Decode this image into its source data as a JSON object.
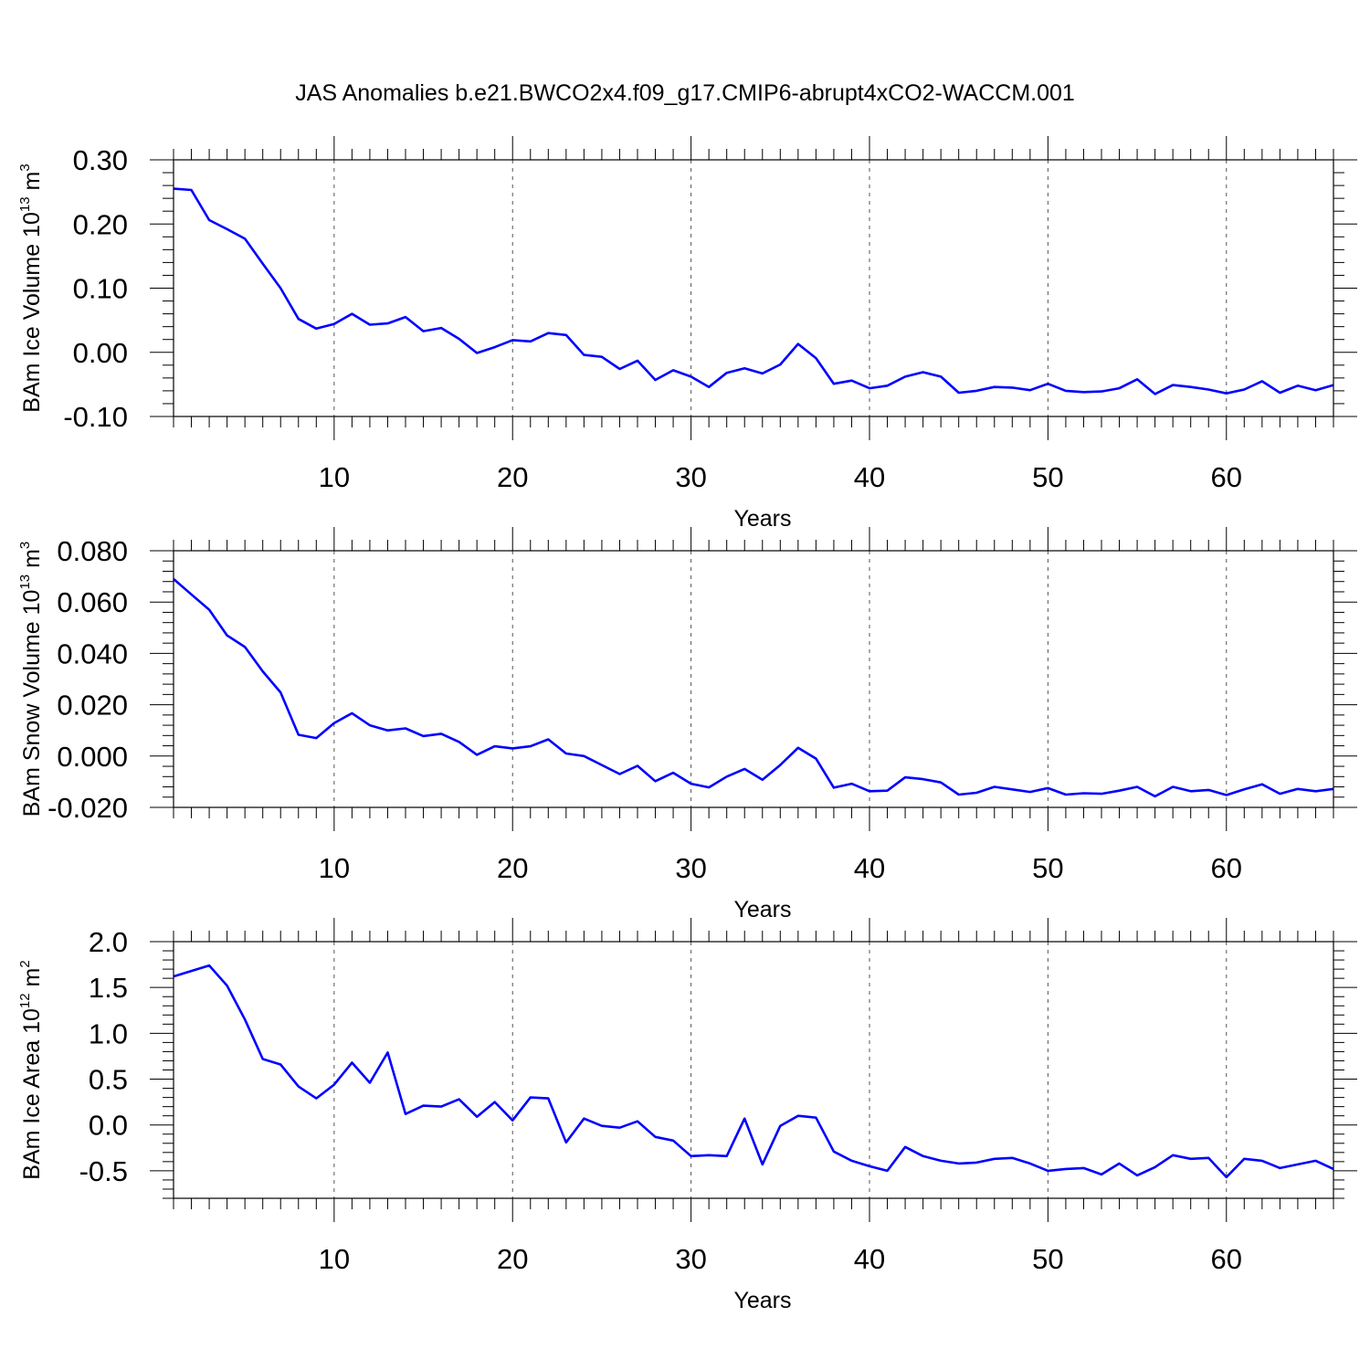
{
  "title": "JAS Anomalies b.e21.BWCO2x4.f09_g17.CMIP6-abrupt4xCO2-WACCM.001",
  "colors": {
    "line": "#0000ff",
    "axis": "#000000",
    "grid": "#555555"
  },
  "chart_data": [
    {
      "type": "line",
      "ylabel": {
        "main": "BAm Ice Volume 10",
        "exp": "13",
        "unit": " m",
        "unit_exp": "3"
      },
      "xlabel": "Years",
      "xlim": [
        1,
        66
      ],
      "ylim": [
        -0.1,
        0.3
      ],
      "yticks": [
        "0.30",
        "0.20",
        "0.10",
        "0.00",
        "-0.10"
      ],
      "ytick_values": [
        0.3,
        0.2,
        0.1,
        0.0,
        -0.1
      ],
      "xticks": [
        "10",
        "20",
        "30",
        "40",
        "50",
        "60"
      ],
      "xtick_values": [
        10,
        20,
        30,
        40,
        50,
        60
      ],
      "grid": "vertical dashed at major x ticks",
      "x": [
        1,
        2,
        3,
        4,
        5,
        6,
        7,
        8,
        9,
        10,
        11,
        12,
        13,
        14,
        15,
        16,
        17,
        18,
        19,
        20,
        21,
        22,
        23,
        24,
        25,
        26,
        27,
        28,
        29,
        30,
        31,
        32,
        33,
        34,
        35,
        36,
        37,
        38,
        39,
        40,
        41,
        42,
        43,
        44,
        45,
        46,
        47,
        48,
        49,
        50,
        51,
        52,
        53,
        54,
        55,
        56,
        57,
        58,
        59,
        60,
        61,
        62,
        63,
        64,
        65,
        66
      ],
      "values": [
        0.255,
        0.253,
        0.206,
        0.192,
        0.177,
        0.138,
        0.1,
        0.052,
        0.037,
        0.044,
        0.06,
        0.043,
        0.045,
        0.055,
        0.033,
        0.038,
        0.021,
        -0.001,
        0.008,
        0.019,
        0.017,
        0.03,
        0.027,
        -0.004,
        -0.007,
        -0.026,
        -0.013,
        -0.043,
        -0.028,
        -0.038,
        -0.054,
        -0.032,
        -0.025,
        -0.033,
        -0.019,
        0.013,
        -0.009,
        -0.049,
        -0.044,
        -0.056,
        -0.052,
        -0.038,
        -0.031,
        -0.038,
        -0.063,
        -0.06,
        -0.054,
        -0.055,
        -0.059,
        -0.049,
        -0.06,
        -0.062,
        -0.061,
        -0.056,
        -0.042,
        -0.065,
        -0.051,
        -0.054,
        -0.058,
        -0.064,
        -0.058,
        -0.045,
        -0.063,
        -0.052,
        -0.059,
        -0.051
      ]
    },
    {
      "type": "line",
      "ylabel": {
        "main": "BAm Snow Volume 10",
        "exp": "13",
        "unit": " m",
        "unit_exp": "3"
      },
      "xlabel": "Years",
      "xlim": [
        1,
        66
      ],
      "ylim": [
        -0.02,
        0.08
      ],
      "yticks": [
        "0.080",
        "0.060",
        "0.040",
        "0.020",
        "0.000",
        "-0.020"
      ],
      "ytick_values": [
        0.08,
        0.06,
        0.04,
        0.02,
        0.0,
        -0.02
      ],
      "xticks": [
        "10",
        "20",
        "30",
        "40",
        "50",
        "60"
      ],
      "xtick_values": [
        10,
        20,
        30,
        40,
        50,
        60
      ],
      "grid": "vertical dashed at major x ticks",
      "x": [
        1,
        2,
        3,
        4,
        5,
        6,
        7,
        8,
        9,
        10,
        11,
        12,
        13,
        14,
        15,
        16,
        17,
        18,
        19,
        20,
        21,
        22,
        23,
        24,
        25,
        26,
        27,
        28,
        29,
        30,
        31,
        32,
        33,
        34,
        35,
        36,
        37,
        38,
        39,
        40,
        41,
        42,
        43,
        44,
        45,
        46,
        47,
        48,
        49,
        50,
        51,
        52,
        53,
        54,
        55,
        56,
        57,
        58,
        59,
        60,
        61,
        62,
        63,
        64,
        65,
        66
      ],
      "values": [
        0.069,
        0.063,
        0.057,
        0.047,
        0.0425,
        0.033,
        0.0248,
        0.0083,
        0.007,
        0.0128,
        0.0167,
        0.012,
        0.01,
        0.0108,
        0.0078,
        0.0087,
        0.0055,
        0.0005,
        0.0038,
        0.003,
        0.0038,
        0.0065,
        0.001,
        0.0,
        -0.0035,
        -0.007,
        -0.0038,
        -0.0098,
        -0.0065,
        -0.0108,
        -0.0122,
        -0.008,
        -0.005,
        -0.0092,
        -0.0035,
        0.0032,
        -0.001,
        -0.0123,
        -0.0108,
        -0.0137,
        -0.0135,
        -0.0083,
        -0.009,
        -0.0103,
        -0.015,
        -0.0143,
        -0.012,
        -0.013,
        -0.014,
        -0.0125,
        -0.015,
        -0.0145,
        -0.0147,
        -0.0135,
        -0.012,
        -0.0157,
        -0.012,
        -0.0137,
        -0.0132,
        -0.0152,
        -0.013,
        -0.011,
        -0.0147,
        -0.0128,
        -0.0137,
        -0.0128
      ]
    },
    {
      "type": "line",
      "ylabel": {
        "main": "BAm Ice Area 10",
        "exp": "12",
        "unit": " m",
        "unit_exp": "2"
      },
      "xlabel": "Years",
      "xlim": [
        1,
        66
      ],
      "ylim": [
        -0.8,
        2.0
      ],
      "yticks": [
        "2.0",
        "1.5",
        "1.0",
        "0.5",
        "0.0",
        "-0.5"
      ],
      "ytick_values": [
        2.0,
        1.5,
        1.0,
        0.5,
        0.0,
        -0.5
      ],
      "xticks": [
        "10",
        "20",
        "30",
        "40",
        "50",
        "60"
      ],
      "xtick_values": [
        10,
        20,
        30,
        40,
        50,
        60
      ],
      "grid": "vertical dashed at major x ticks",
      "x": [
        1,
        2,
        3,
        4,
        5,
        6,
        7,
        8,
        9,
        10,
        11,
        12,
        13,
        14,
        15,
        16,
        17,
        18,
        19,
        20,
        21,
        22,
        23,
        24,
        25,
        26,
        27,
        28,
        29,
        30,
        31,
        32,
        33,
        34,
        35,
        36,
        37,
        38,
        39,
        40,
        41,
        42,
        43,
        44,
        45,
        46,
        47,
        48,
        49,
        50,
        51,
        52,
        53,
        54,
        55,
        56,
        57,
        58,
        59,
        60,
        61,
        62,
        63,
        64,
        65,
        66
      ],
      "values": [
        1.62,
        1.68,
        1.74,
        1.52,
        1.15,
        0.72,
        0.66,
        0.42,
        0.29,
        0.44,
        0.68,
        0.46,
        0.79,
        0.12,
        0.21,
        0.2,
        0.28,
        0.09,
        0.25,
        0.05,
        0.3,
        0.29,
        -0.19,
        0.07,
        -0.01,
        -0.03,
        0.04,
        -0.13,
        -0.17,
        -0.34,
        -0.33,
        -0.34,
        0.07,
        -0.43,
        -0.01,
        0.1,
        0.08,
        -0.29,
        -0.39,
        -0.45,
        -0.5,
        -0.24,
        -0.34,
        -0.39,
        -0.42,
        -0.41,
        -0.37,
        -0.36,
        -0.42,
        -0.5,
        -0.48,
        -0.47,
        -0.54,
        -0.42,
        -0.55,
        -0.46,
        -0.33,
        -0.37,
        -0.36,
        -0.57,
        -0.37,
        -0.39,
        -0.47,
        -0.43,
        -0.39,
        -0.48
      ]
    }
  ]
}
